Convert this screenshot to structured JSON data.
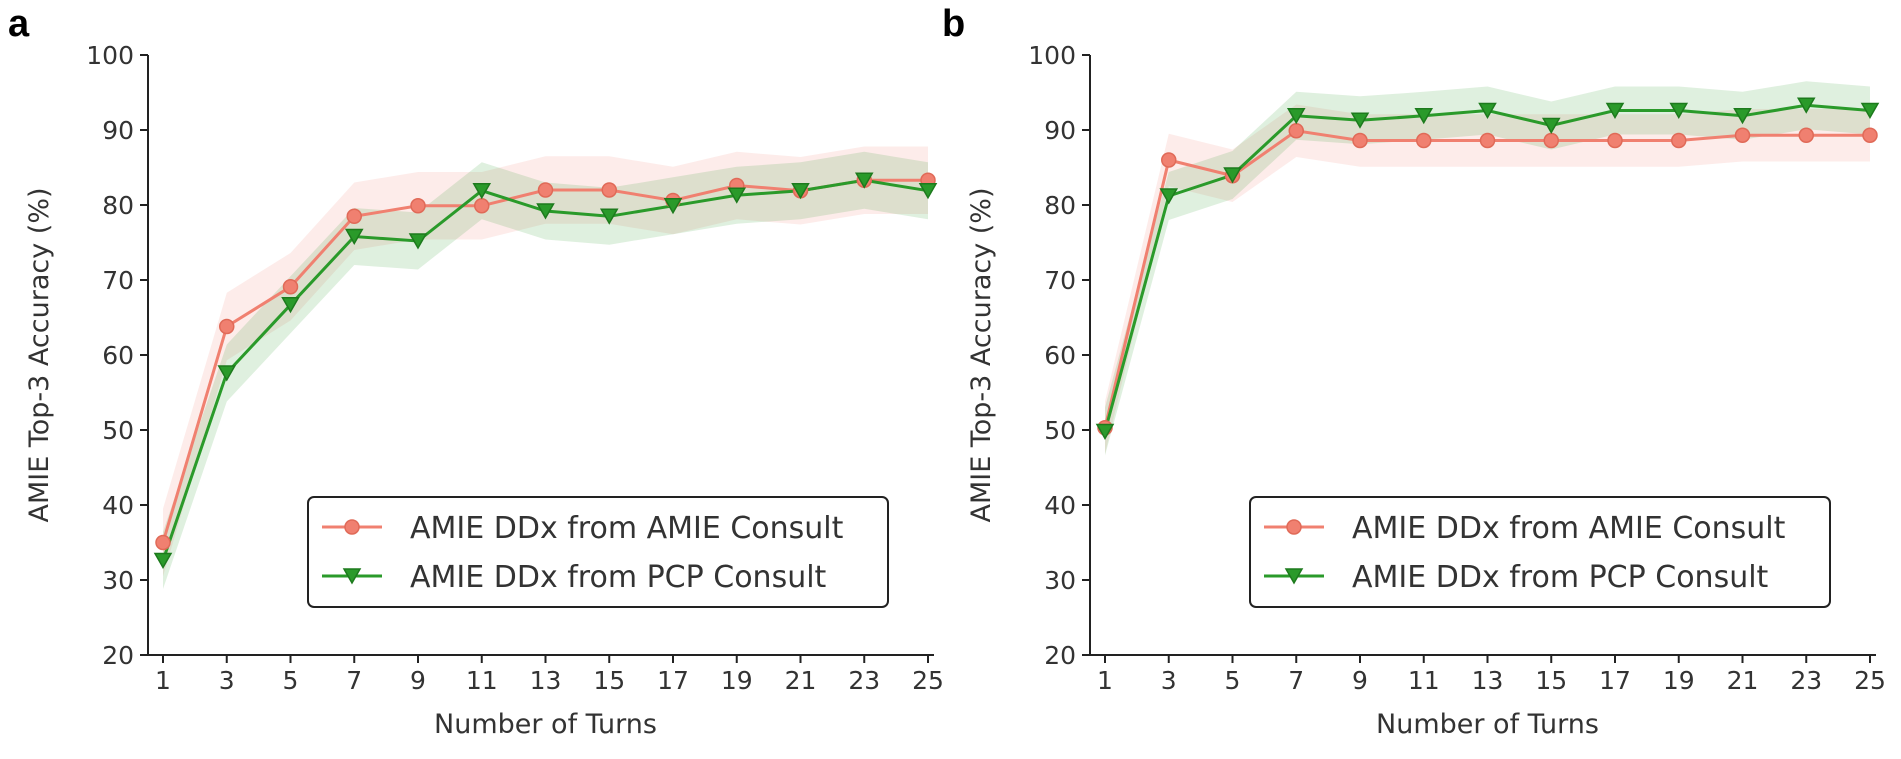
{
  "chart_data": [
    {
      "type": "line",
      "panel": "a",
      "xlabel": "Number of Turns",
      "ylabel": "AMIE Top-3 Accuracy (%)",
      "xlim": [
        1,
        25
      ],
      "ylim": [
        20,
        100
      ],
      "xticks": [
        "1",
        "3",
        "5",
        "7",
        "9",
        "11",
        "13",
        "15",
        "17",
        "19",
        "21",
        "23",
        "25"
      ],
      "yticks": [
        "20",
        "30",
        "40",
        "50",
        "60",
        "70",
        "80",
        "90",
        "100"
      ],
      "x": [
        1,
        3,
        5,
        7,
        9,
        11,
        13,
        15,
        17,
        19,
        21,
        23,
        25
      ],
      "grid": false,
      "legend_position": "lower-right",
      "series": [
        {
          "name": "AMIE DDx from AMIE Consult",
          "color": "#f08070",
          "marker": "circle",
          "values": [
            35,
            63.8,
            69.1,
            78.5,
            79.9,
            79.9,
            82,
            82,
            80.6,
            82.6,
            81.9,
            83.3,
            83.3
          ],
          "band": 4.5
        },
        {
          "name": "AMIE DDx from PCP Consult",
          "color": "#2a9a2a",
          "marker": "triangle-down",
          "values": [
            32.6,
            57.6,
            66.7,
            75.8,
            75.2,
            81.9,
            79.2,
            78.5,
            79.9,
            81.3,
            81.9,
            83.3,
            81.9
          ],
          "band": 3.8
        }
      ]
    },
    {
      "type": "line",
      "panel": "b",
      "xlabel": "Number of Turns",
      "ylabel": "AMIE Top-3 Accuracy (%)",
      "xlim": [
        1,
        25
      ],
      "ylim": [
        20,
        100
      ],
      "xticks": [
        "1",
        "3",
        "5",
        "7",
        "9",
        "11",
        "13",
        "15",
        "17",
        "19",
        "21",
        "23",
        "25"
      ],
      "yticks": [
        "20",
        "30",
        "40",
        "50",
        "60",
        "70",
        "80",
        "90",
        "100"
      ],
      "x": [
        1,
        3,
        5,
        7,
        9,
        11,
        13,
        15,
        17,
        19,
        21,
        23,
        25
      ],
      "grid": false,
      "legend_position": "lower-right",
      "series": [
        {
          "name": "AMIE DDx from AMIE Consult",
          "color": "#f08070",
          "marker": "circle",
          "values": [
            50.3,
            86,
            83.9,
            89.9,
            88.6,
            88.6,
            88.6,
            88.6,
            88.6,
            88.6,
            89.3,
            89.3,
            89.3
          ],
          "band": 3.5
        },
        {
          "name": "AMIE DDx from PCP Consult",
          "color": "#2a9a2a",
          "marker": "triangle-down",
          "values": [
            49.8,
            81.2,
            84,
            91.9,
            91.3,
            91.9,
            92.6,
            90.6,
            92.6,
            92.6,
            91.9,
            93.3,
            92.6
          ],
          "band": 3.2
        }
      ]
    }
  ]
}
